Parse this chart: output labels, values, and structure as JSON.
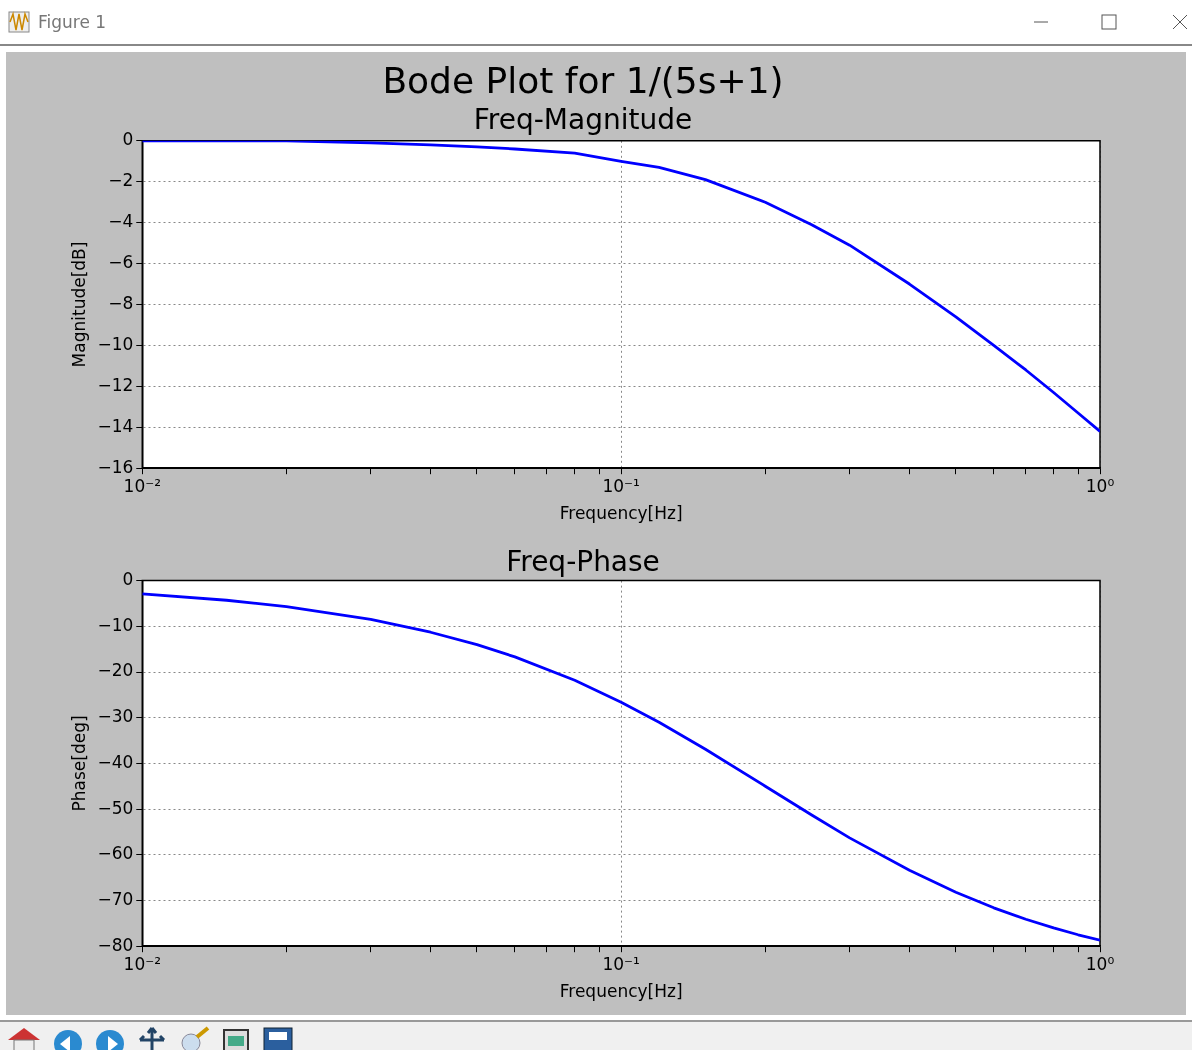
{
  "chart_data": [
    {
      "type": "line",
      "title": "Bode Plot for 1/(5s+1)",
      "subtitle": "Freq-Magnitude",
      "xlabel": "Frequency[Hz]",
      "ylabel": "Magnitude[dB]",
      "annotations": [
        "Figure 1"
      ],
      "log": "x",
      "grid": true,
      "legend": false,
      "x": [
        0.01,
        0.015,
        0.02,
        0.03,
        0.04,
        0.05,
        0.06,
        0.08,
        0.1,
        0.12,
        0.15,
        0.2,
        0.25,
        0.3,
        0.4,
        0.5,
        0.6,
        0.7,
        0.8,
        0.9,
        1.0
      ],
      "series": [
        {
          "color": "#0000ff",
          "values": [
            0,
            0,
            0,
            -0.1,
            -0.2,
            -0.3,
            -0.4,
            -0.6,
            -1.0,
            -1.3,
            -1.9,
            -3.0,
            -4.1,
            -5.1,
            -7.0,
            -8.6,
            -10.0,
            -11.2,
            -12.3,
            -13.3,
            -14.2
          ]
        }
      ],
      "xlim": [
        0.01,
        1
      ],
      "xticks": [
        {
          "value": 0.01,
          "label": "10⁻²"
        },
        {
          "value": 0.02,
          "label": null
        },
        {
          "value": 0.03,
          "label": null
        },
        {
          "value": 0.04,
          "label": null
        },
        {
          "value": 0.05,
          "label": null
        },
        {
          "value": 0.06,
          "label": null
        },
        {
          "value": 0.07,
          "label": null
        },
        {
          "value": 0.08,
          "label": null
        },
        {
          "value": 0.09,
          "label": null
        },
        {
          "value": 0.1,
          "label": "10⁻¹"
        },
        {
          "value": 0.2,
          "label": null
        },
        {
          "value": 0.3,
          "label": null
        },
        {
          "value": 0.4,
          "label": null
        },
        {
          "value": 0.5,
          "label": null
        },
        {
          "value": 0.6,
          "label": null
        },
        {
          "value": 0.7,
          "label": null
        },
        {
          "value": 0.8,
          "label": null
        },
        {
          "value": 0.9,
          "label": null
        },
        {
          "value": 1,
          "label": "10⁰"
        }
      ],
      "ylim": [
        -16,
        0
      ],
      "yticks": [
        0,
        {
          "value": -2,
          "label": "−2"
        },
        {
          "value": -4,
          "label": "−4"
        },
        {
          "value": -6,
          "label": "−6"
        },
        {
          "value": -8,
          "label": "−8"
        },
        {
          "value": -10,
          "label": "−10"
        },
        {
          "value": -12,
          "label": "−12"
        },
        {
          "value": -14,
          "label": "−14"
        },
        {
          "value": -16,
          "label": "−16"
        }
      ]
    },
    {
      "type": "line",
      "title": "Freq-Phase",
      "xlabel": "Frequency[Hz]",
      "ylabel": "Phase[deg]",
      "log": "x",
      "grid": true,
      "legend": false,
      "x": [
        0.01,
        0.015,
        0.02,
        0.03,
        0.04,
        0.05,
        0.06,
        0.08,
        0.1,
        0.12,
        0.15,
        0.2,
        0.25,
        0.3,
        0.4,
        0.5,
        0.6,
        0.7,
        0.8,
        0.9,
        1.0
      ],
      "series": [
        {
          "color": "#0000ff",
          "values": [
            -2.9,
            -4.3,
            -5.7,
            -8.5,
            -11.3,
            -14.0,
            -16.7,
            -21.8,
            -26.6,
            -31.0,
            -36.9,
            -45.0,
            -51.3,
            -56.3,
            -63.4,
            -68.2,
            -71.6,
            -74.1,
            -76.0,
            -77.5,
            -78.7
          ]
        }
      ],
      "xlim": [
        0.01,
        1
      ],
      "xticks": [
        {
          "value": 0.01,
          "label": "10⁻²"
        },
        {
          "value": 0.02,
          "label": null
        },
        {
          "value": 0.03,
          "label": null
        },
        {
          "value": 0.04,
          "label": null
        },
        {
          "value": 0.05,
          "label": null
        },
        {
          "value": 0.06,
          "label": null
        },
        {
          "value": 0.07,
          "label": null
        },
        {
          "value": 0.08,
          "label": null
        },
        {
          "value": 0.09,
          "label": null
        },
        {
          "value": 0.1,
          "label": "10⁻¹"
        },
        {
          "value": 0.2,
          "label": null
        },
        {
          "value": 0.3,
          "label": null
        },
        {
          "value": 0.4,
          "label": null
        },
        {
          "value": 0.5,
          "label": null
        },
        {
          "value": 0.6,
          "label": null
        },
        {
          "value": 0.7,
          "label": null
        },
        {
          "value": 0.8,
          "label": null
        },
        {
          "value": 0.9,
          "label": null
        },
        {
          "value": 1,
          "label": "10⁰"
        }
      ],
      "ylim": [
        -80,
        0
      ],
      "yticks": [
        0,
        {
          "value": -10,
          "label": "−10"
        },
        {
          "value": -20,
          "label": "−20"
        },
        {
          "value": -30,
          "label": "−30"
        },
        {
          "value": -40,
          "label": "−40"
        },
        {
          "value": -50,
          "label": "−50"
        },
        {
          "value": -60,
          "label": "−60"
        },
        {
          "value": -70,
          "label": "−70"
        },
        {
          "value": -80,
          "label": "−80"
        }
      ]
    }
  ]
}
